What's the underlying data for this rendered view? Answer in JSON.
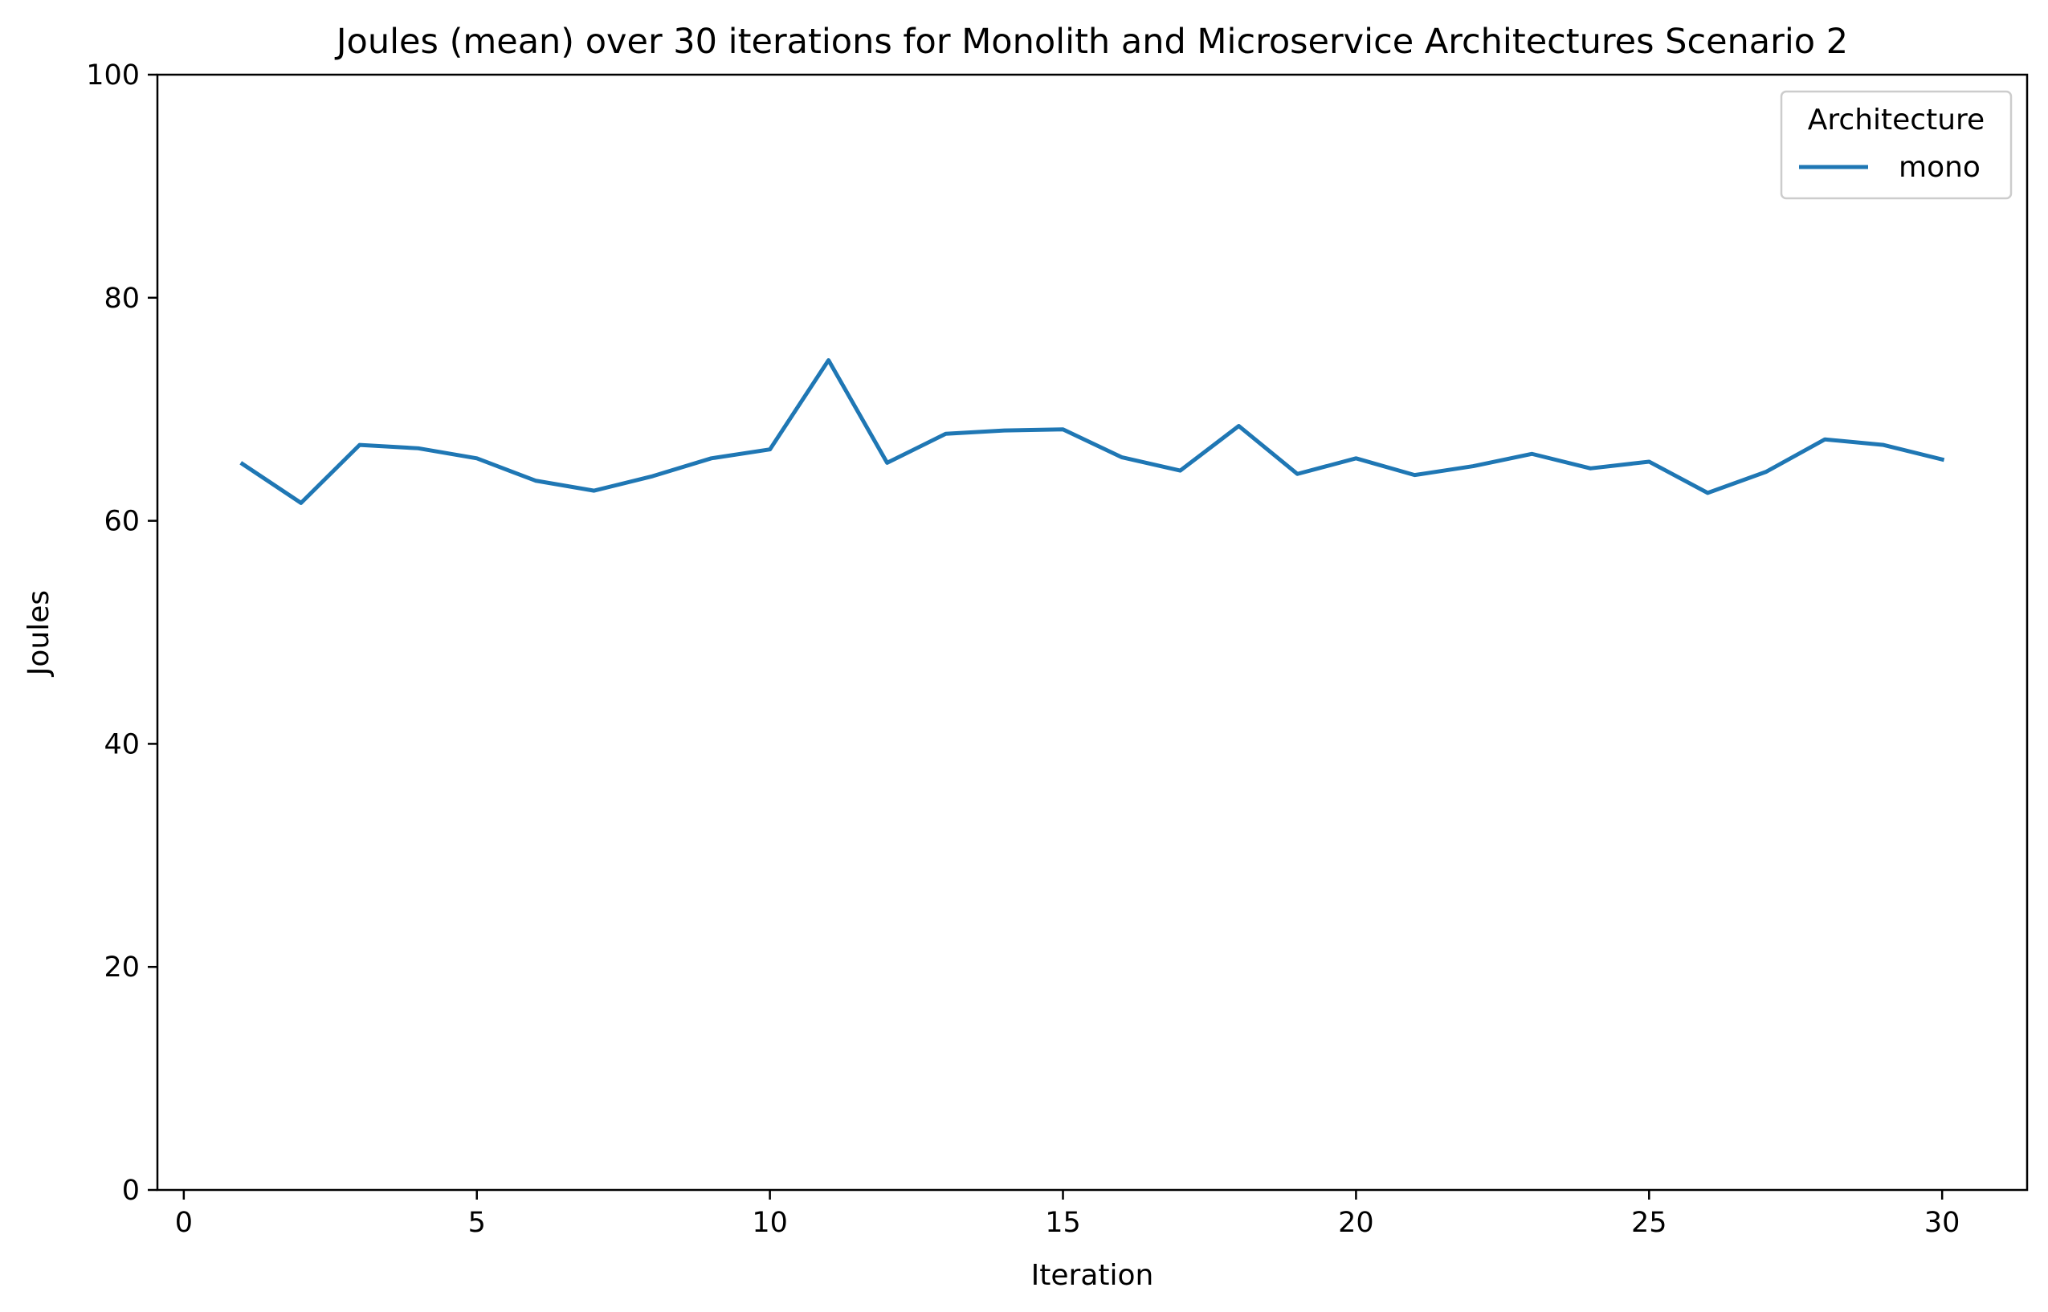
{
  "chart_data": {
    "type": "line",
    "title": "Joules (mean) over 30 iterations for Monolith and Microservice Architectures Scenario 2",
    "xlabel": "Iteration",
    "ylabel": "Joules",
    "xlim": [
      -0.45,
      31.45
    ],
    "ylim": [
      0,
      100
    ],
    "xticks": [
      0,
      5,
      10,
      15,
      20,
      25,
      30
    ],
    "yticks": [
      0,
      20,
      40,
      60,
      80,
      100
    ],
    "grid": false,
    "legend": {
      "title": "Architecture",
      "placement": "top-right"
    },
    "x": [
      1,
      2,
      3,
      4,
      5,
      6,
      7,
      8,
      9,
      10,
      11,
      12,
      13,
      14,
      15,
      16,
      17,
      18,
      19,
      20,
      21,
      22,
      23,
      24,
      25,
      26,
      27,
      28,
      29,
      30
    ],
    "series": [
      {
        "name": "mono",
        "color": "#1f77b4",
        "values": [
          65.1,
          61.6,
          66.8,
          66.5,
          65.6,
          63.6,
          62.7,
          64.0,
          65.6,
          66.4,
          74.4,
          65.2,
          67.8,
          68.1,
          68.2,
          65.7,
          64.5,
          68.5,
          64.2,
          65.6,
          64.1,
          64.9,
          66.0,
          64.7,
          65.3,
          62.5,
          64.4,
          67.3,
          66.8,
          65.5
        ]
      }
    ]
  }
}
